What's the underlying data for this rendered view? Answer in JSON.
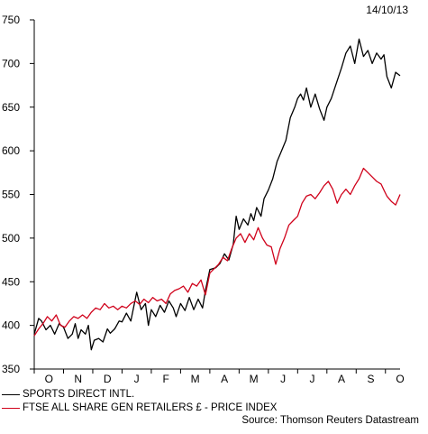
{
  "chart_data": {
    "type": "line",
    "date_label": "14/10/13",
    "source": "Source: Thomson Reuters Datastream",
    "ylim": [
      350,
      750
    ],
    "yticks": [
      350,
      400,
      450,
      500,
      550,
      600,
      650,
      700,
      750
    ],
    "xlim": [
      0,
      12.5
    ],
    "categories": [
      "O",
      "N",
      "D",
      "J",
      "F",
      "M",
      "A",
      "M",
      "J",
      "J",
      "A",
      "S",
      "O"
    ],
    "grid": false,
    "legend_position": "bottom-left",
    "series": [
      {
        "name": "SPORTS DIRECT INTL.",
        "color": "#000000",
        "x": [
          0.0,
          0.15,
          0.25,
          0.4,
          0.55,
          0.7,
          0.85,
          1.0,
          1.15,
          1.3,
          1.4,
          1.5,
          1.6,
          1.75,
          1.85,
          1.95,
          2.05,
          2.2,
          2.35,
          2.5,
          2.6,
          2.75,
          2.9,
          3.0,
          3.15,
          3.3,
          3.5,
          3.65,
          3.8,
          3.9,
          4.0,
          4.15,
          4.3,
          4.45,
          4.6,
          4.75,
          4.85,
          5.0,
          5.15,
          5.3,
          5.45,
          5.6,
          5.75,
          5.85,
          6.0,
          6.2,
          6.35,
          6.5,
          6.65,
          6.8,
          6.9,
          7.0,
          7.15,
          7.3,
          7.4,
          7.5,
          7.6,
          7.75,
          7.85,
          8.0,
          8.15,
          8.3,
          8.45,
          8.6,
          8.75,
          8.9,
          9.0,
          9.1,
          9.2,
          9.3,
          9.45,
          9.6,
          9.75,
          9.9,
          10.0,
          10.15,
          10.3,
          10.5,
          10.65,
          10.8,
          10.95,
          11.1,
          11.25,
          11.4,
          11.55,
          11.7,
          11.85,
          11.95,
          12.05,
          12.2,
          12.35,
          12.5
        ],
        "values": [
          390,
          408,
          405,
          395,
          400,
          390,
          402,
          398,
          385,
          390,
          402,
          385,
          395,
          390,
          400,
          372,
          383,
          385,
          381,
          396,
          391,
          396,
          405,
          404,
          414,
          405,
          438,
          418,
          425,
          400,
          418,
          410,
          423,
          415,
          428,
          420,
          410,
          425,
          417,
          432,
          418,
          430,
          420,
          440,
          464,
          466,
          471,
          482,
          475,
          493,
          525,
          510,
          522,
          515,
          528,
          520,
          535,
          525,
          545,
          555,
          568,
          588,
          600,
          612,
          638,
          650,
          660,
          665,
          658,
          672,
          650,
          665,
          648,
          635,
          650,
          660,
          675,
          695,
          712,
          720,
          700,
          728,
          708,
          715,
          700,
          712,
          705,
          710,
          685,
          672,
          690,
          686
        ]
      },
      {
        "name": "FTSE ALL SHARE GEN RETAILERS £ - PRICE INDEX",
        "color": "#d0021b",
        "x": [
          0.0,
          0.15,
          0.3,
          0.45,
          0.6,
          0.75,
          0.9,
          1.05,
          1.2,
          1.35,
          1.5,
          1.65,
          1.8,
          1.95,
          2.1,
          2.25,
          2.4,
          2.55,
          2.7,
          2.85,
          3.0,
          3.15,
          3.3,
          3.45,
          3.6,
          3.75,
          3.9,
          4.05,
          4.2,
          4.35,
          4.5,
          4.65,
          4.8,
          4.95,
          5.1,
          5.25,
          5.4,
          5.55,
          5.7,
          5.85,
          6.0,
          6.15,
          6.3,
          6.45,
          6.6,
          6.75,
          6.9,
          7.05,
          7.2,
          7.35,
          7.5,
          7.65,
          7.8,
          7.95,
          8.1,
          8.25,
          8.4,
          8.55,
          8.7,
          8.85,
          9.0,
          9.15,
          9.3,
          9.45,
          9.6,
          9.75,
          9.9,
          10.05,
          10.2,
          10.35,
          10.5,
          10.65,
          10.8,
          10.95,
          11.1,
          11.25,
          11.4,
          11.55,
          11.7,
          11.85,
          11.95,
          12.05,
          12.2,
          12.35,
          12.5
        ],
        "values": [
          388,
          396,
          402,
          410,
          405,
          412,
          400,
          398,
          405,
          410,
          408,
          412,
          408,
          415,
          420,
          418,
          425,
          420,
          422,
          418,
          422,
          420,
          425,
          428,
          424,
          430,
          426,
          432,
          428,
          430,
          425,
          436,
          440,
          442,
          445,
          438,
          448,
          445,
          452,
          435,
          460,
          465,
          470,
          478,
          474,
          488,
          500,
          505,
          495,
          505,
          498,
          512,
          500,
          492,
          490,
          470,
          488,
          500,
          515,
          520,
          525,
          540,
          548,
          550,
          545,
          552,
          560,
          565,
          556,
          540,
          550,
          556,
          550,
          560,
          568,
          580,
          575,
          570,
          565,
          562,
          555,
          548,
          542,
          538,
          550
        ]
      }
    ]
  }
}
